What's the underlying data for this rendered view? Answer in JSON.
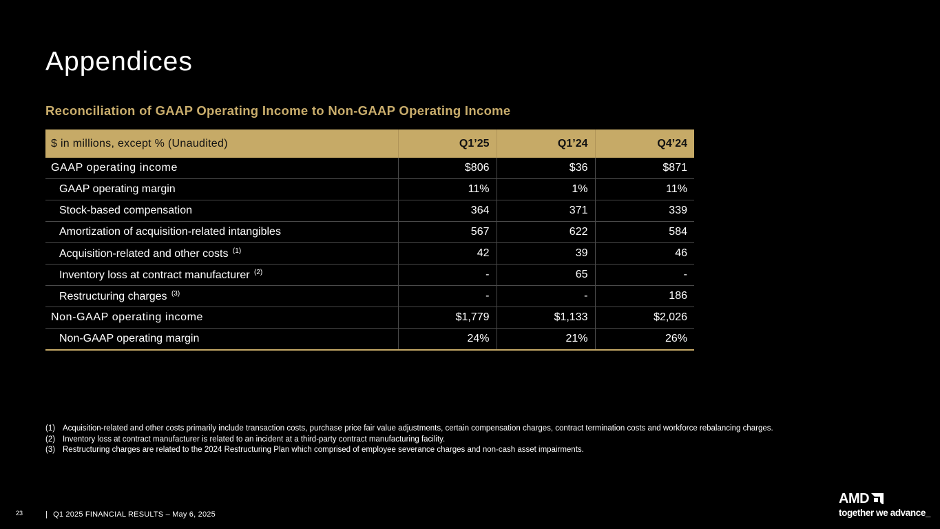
{
  "page": {
    "title": "Appendices",
    "subtitle": "Reconciliation of GAAP Operating Income to Non-GAAP Operating Income"
  },
  "table": {
    "header": {
      "label": "$ in millions, except % (Unaudited)",
      "col1": "Q1’25",
      "col2": "Q1’24",
      "col3": "Q4’24"
    },
    "rows": [
      {
        "label": "GAAP operating income",
        "ref": "",
        "v1": "$806",
        "v2": "$36",
        "v3": "$871"
      },
      {
        "label": "GAAP operating margin",
        "ref": "",
        "v1": "11%",
        "v2": "1%",
        "v3": "11%"
      },
      {
        "label": "Stock-based compensation",
        "ref": "",
        "v1": "364",
        "v2": "371",
        "v3": "339"
      },
      {
        "label": "Amortization of acquisition-related intangibles",
        "ref": "",
        "v1": "567",
        "v2": "622",
        "v3": "584"
      },
      {
        "label": "Acquisition-related and other costs",
        "ref": "(1)",
        "v1": "42",
        "v2": "39",
        "v3": "46"
      },
      {
        "label": "Inventory loss at contract manufacturer",
        "ref": "(2)",
        "v1": "-",
        "v2": "65",
        "v3": "-"
      },
      {
        "label": "Restructuring charges",
        "ref": "(3)",
        "v1": "-",
        "v2": "-",
        "v3": "186"
      },
      {
        "label": "Non-GAAP operating income",
        "ref": "",
        "v1": "$1,779",
        "v2": "$1,133",
        "v3": "$2,026"
      },
      {
        "label": "Non-GAAP operating margin",
        "ref": "",
        "v1": "24%",
        "v2": "21%",
        "v3": "26%"
      }
    ]
  },
  "footnotes": [
    {
      "num": "(1)",
      "text": "Acquisition-related and other costs primarily include transaction costs, purchase price fair value adjustments, certain compensation charges, contract termination costs and workforce rebalancing charges."
    },
    {
      "num": "(2)",
      "text": "Inventory loss at contract manufacturer is related to an incident at a third-party contract manufacturing facility."
    },
    {
      "num": "(3)",
      "text": "Restructuring charges are related to the 2024 Restructuring Plan which comprised of employee severance charges and non-cash asset impairments."
    }
  ],
  "footer": {
    "page_number": "23",
    "separator": "|",
    "text": "Q1 2025 FINANCIAL RESULTS – May 6, 2025"
  },
  "logo": {
    "brand": "AMD",
    "tagline": "together we advance_"
  },
  "colors": {
    "accent_gold": "#c6aa67",
    "subtitle_gold": "#c9ad6c",
    "background": "#000000"
  }
}
